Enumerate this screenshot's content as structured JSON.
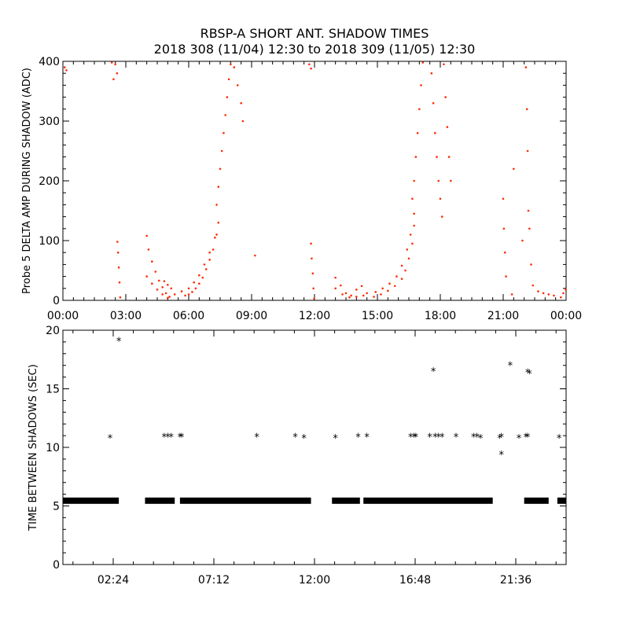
{
  "figure": {
    "title_line1": "RBSP-A SHORT ANT. SHADOW TIMES",
    "title_line2": "2018 308 (11/04) 12:30 to 2018 309 (11/05) 12:30"
  },
  "chart_data": [
    {
      "type": "scatter",
      "ylabel": "Probe 5 DELTA AMP DURING SHADOW (ADC)",
      "xlabel": "",
      "xlim": [
        "00:00",
        "24:00"
      ],
      "ylim": [
        0,
        400
      ],
      "x_tick_labels": [
        "00:00",
        "03:00",
        "06:00",
        "09:00",
        "12:00",
        "15:00",
        "18:00",
        "21:00",
        "00:00"
      ],
      "y_tick_labels": [
        "0",
        "100",
        "200",
        "300",
        "400"
      ],
      "grid": false,
      "marker": "dot",
      "color": "#ff2a00",
      "series": [
        {
          "points": [
            {
              "x": "00:05",
              "y": 390
            },
            {
              "x": "00:10",
              "y": 385
            },
            {
              "x": "02:20",
              "y": 398
            },
            {
              "x": "02:25",
              "y": 370
            },
            {
              "x": "02:30",
              "y": 395
            },
            {
              "x": "02:35",
              "y": 380
            },
            {
              "x": "02:36",
              "y": 98
            },
            {
              "x": "02:38",
              "y": 80
            },
            {
              "x": "02:40",
              "y": 55
            },
            {
              "x": "02:42",
              "y": 30
            },
            {
              "x": "02:44",
              "y": 5
            },
            {
              "x": "04:00",
              "y": 108
            },
            {
              "x": "04:05",
              "y": 85
            },
            {
              "x": "04:15",
              "y": 65
            },
            {
              "x": "04:25",
              "y": 48
            },
            {
              "x": "04:35",
              "y": 33
            },
            {
              "x": "04:45",
              "y": 22
            },
            {
              "x": "04:55",
              "y": 12
            },
            {
              "x": "05:05",
              "y": 6
            },
            {
              "x": "04:00",
              "y": 40
            },
            {
              "x": "04:15",
              "y": 28
            },
            {
              "x": "04:30",
              "y": 18
            },
            {
              "x": "04:45",
              "y": 10
            },
            {
              "x": "05:00",
              "y": 4
            },
            {
              "x": "04:50",
              "y": 32
            },
            {
              "x": "05:00",
              "y": 26
            },
            {
              "x": "05:10",
              "y": 20
            },
            {
              "x": "05:20",
              "y": 10
            },
            {
              "x": "05:40",
              "y": 15
            },
            {
              "x": "05:50",
              "y": 8
            },
            {
              "x": "06:00",
              "y": 10
            },
            {
              "x": "06:10",
              "y": 14
            },
            {
              "x": "06:20",
              "y": 20
            },
            {
              "x": "06:30",
              "y": 28
            },
            {
              "x": "06:40",
              "y": 38
            },
            {
              "x": "06:50",
              "y": 52
            },
            {
              "x": "07:00",
              "y": 68
            },
            {
              "x": "07:10",
              "y": 85
            },
            {
              "x": "07:20",
              "y": 110
            },
            {
              "x": "06:00",
              "y": 20
            },
            {
              "x": "06:15",
              "y": 30
            },
            {
              "x": "06:30",
              "y": 42
            },
            {
              "x": "06:45",
              "y": 60
            },
            {
              "x": "07:00",
              "y": 80
            },
            {
              "x": "07:15",
              "y": 105
            },
            {
              "x": "07:25",
              "y": 130
            },
            {
              "x": "07:20",
              "y": 160
            },
            {
              "x": "07:25",
              "y": 190
            },
            {
              "x": "07:30",
              "y": 220
            },
            {
              "x": "07:35",
              "y": 250
            },
            {
              "x": "07:40",
              "y": 280
            },
            {
              "x": "07:45",
              "y": 310
            },
            {
              "x": "07:50",
              "y": 340
            },
            {
              "x": "07:55",
              "y": 370
            },
            {
              "x": "08:00",
              "y": 395
            },
            {
              "x": "08:10",
              "y": 390
            },
            {
              "x": "08:20",
              "y": 360
            },
            {
              "x": "08:30",
              "y": 330
            },
            {
              "x": "08:35",
              "y": 300
            },
            {
              "x": "09:10",
              "y": 75
            },
            {
              "x": "11:45",
              "y": 395
            },
            {
              "x": "11:50",
              "y": 388
            },
            {
              "x": "11:50",
              "y": 95
            },
            {
              "x": "11:52",
              "y": 70
            },
            {
              "x": "11:55",
              "y": 45
            },
            {
              "x": "11:57",
              "y": 20
            },
            {
              "x": "11:59",
              "y": 3
            },
            {
              "x": "13:00",
              "y": 38
            },
            {
              "x": "13:15",
              "y": 25
            },
            {
              "x": "13:30",
              "y": 12
            },
            {
              "x": "13:45",
              "y": 8
            },
            {
              "x": "14:00",
              "y": 18
            },
            {
              "x": "14:15",
              "y": 24
            },
            {
              "x": "14:30",
              "y": 12
            },
            {
              "x": "13:00",
              "y": 20
            },
            {
              "x": "13:20",
              "y": 10
            },
            {
              "x": "13:40",
              "y": 5
            },
            {
              "x": "14:00",
              "y": 6
            },
            {
              "x": "14:20",
              "y": 8
            },
            {
              "x": "14:50",
              "y": 6
            },
            {
              "x": "15:10",
              "y": 10
            },
            {
              "x": "15:30",
              "y": 16
            },
            {
              "x": "15:50",
              "y": 24
            },
            {
              "x": "16:10",
              "y": 36
            },
            {
              "x": "16:20",
              "y": 50
            },
            {
              "x": "16:30",
              "y": 70
            },
            {
              "x": "16:40",
              "y": 95
            },
            {
              "x": "16:45",
              "y": 125
            },
            {
              "x": "14:55",
              "y": 14
            },
            {
              "x": "15:15",
              "y": 20
            },
            {
              "x": "15:35",
              "y": 28
            },
            {
              "x": "15:55",
              "y": 40
            },
            {
              "x": "16:10",
              "y": 58
            },
            {
              "x": "16:25",
              "y": 85
            },
            {
              "x": "16:35",
              "y": 110
            },
            {
              "x": "16:45",
              "y": 145
            },
            {
              "x": "16:40",
              "y": 170
            },
            {
              "x": "16:45",
              "y": 200
            },
            {
              "x": "16:50",
              "y": 240
            },
            {
              "x": "16:55",
              "y": 280
            },
            {
              "x": "17:00",
              "y": 320
            },
            {
              "x": "17:05",
              "y": 360
            },
            {
              "x": "17:10",
              "y": 398
            },
            {
              "x": "17:35",
              "y": 380
            },
            {
              "x": "17:40",
              "y": 330
            },
            {
              "x": "17:45",
              "y": 280
            },
            {
              "x": "17:50",
              "y": 240
            },
            {
              "x": "17:55",
              "y": 200
            },
            {
              "x": "18:00",
              "y": 170
            },
            {
              "x": "18:05",
              "y": 140
            },
            {
              "x": "18:10",
              "y": 395
            },
            {
              "x": "18:15",
              "y": 340
            },
            {
              "x": "18:20",
              "y": 290
            },
            {
              "x": "18:25",
              "y": 240
            },
            {
              "x": "18:30",
              "y": 200
            },
            {
              "x": "21:00",
              "y": 170
            },
            {
              "x": "21:02",
              "y": 120
            },
            {
              "x": "21:05",
              "y": 80
            },
            {
              "x": "21:08",
              "y": 40
            },
            {
              "x": "21:25",
              "y": 10
            },
            {
              "x": "21:30",
              "y": 220
            },
            {
              "x": "21:55",
              "y": 100
            },
            {
              "x": "22:05",
              "y": 390
            },
            {
              "x": "22:08",
              "y": 320
            },
            {
              "x": "22:10",
              "y": 250
            },
            {
              "x": "22:12",
              "y": 150
            },
            {
              "x": "22:15",
              "y": 120
            },
            {
              "x": "22:20",
              "y": 60
            },
            {
              "x": "22:25",
              "y": 25
            },
            {
              "x": "22:40",
              "y": 15
            },
            {
              "x": "22:55",
              "y": 12
            },
            {
              "x": "23:10",
              "y": 10
            },
            {
              "x": "23:25",
              "y": 8
            },
            {
              "x": "23:45",
              "y": 5
            },
            {
              "x": "23:52",
              "y": 12
            },
            {
              "x": "23:59",
              "y": 18
            }
          ]
        }
      ]
    },
    {
      "type": "scatter",
      "ylabel": "TIME BETWEEN SHADOWS (SEC)",
      "xlabel": "",
      "xlim": [
        "00:00",
        "24:00"
      ],
      "ylim": [
        0,
        20
      ],
      "x_tick_labels": [
        "02:24",
        "07:12",
        "12:00",
        "16:48",
        "21:36"
      ],
      "y_tick_labels": [
        "0",
        "5",
        "10",
        "15",
        "20"
      ],
      "grid": false,
      "marker": "asterisk",
      "color": "#000000",
      "baseline_value": 5.45,
      "baseline_segments": [
        {
          "from": "00:00",
          "to": "02:40"
        },
        {
          "from": "03:55",
          "to": "05:20"
        },
        {
          "from": "05:35",
          "to": "11:50"
        },
        {
          "from": "12:50",
          "to": "14:10"
        },
        {
          "from": "14:20",
          "to": "20:30"
        },
        {
          "from": "22:00",
          "to": "23:10"
        },
        {
          "from": "23:35",
          "to": "24:00"
        }
      ],
      "series": [
        {
          "points": [
            {
              "x": "02:15",
              "y": 10.8
            },
            {
              "x": "02:40",
              "y": 19.1
            },
            {
              "x": "04:50",
              "y": 10.9
            },
            {
              "x": "05:00",
              "y": 10.9
            },
            {
              "x": "05:10",
              "y": 10.9
            },
            {
              "x": "05:35",
              "y": 10.9
            },
            {
              "x": "05:40",
              "y": 10.9
            },
            {
              "x": "09:15",
              "y": 10.9
            },
            {
              "x": "11:05",
              "y": 10.9
            },
            {
              "x": "11:30",
              "y": 10.8
            },
            {
              "x": "13:00",
              "y": 10.8
            },
            {
              "x": "14:05",
              "y": 10.9
            },
            {
              "x": "14:30",
              "y": 10.9
            },
            {
              "x": "16:35",
              "y": 10.9
            },
            {
              "x": "16:45",
              "y": 10.9
            },
            {
              "x": "16:50",
              "y": 10.9
            },
            {
              "x": "17:30",
              "y": 10.9
            },
            {
              "x": "17:40",
              "y": 16.5
            },
            {
              "x": "17:45",
              "y": 10.9
            },
            {
              "x": "17:55",
              "y": 10.9
            },
            {
              "x": "18:05",
              "y": 10.9
            },
            {
              "x": "18:45",
              "y": 10.9
            },
            {
              "x": "19:35",
              "y": 10.9
            },
            {
              "x": "19:45",
              "y": 10.9
            },
            {
              "x": "19:55",
              "y": 10.8
            },
            {
              "x": "20:50",
              "y": 10.8
            },
            {
              "x": "20:55",
              "y": 10.9
            },
            {
              "x": "20:55",
              "y": 9.4
            },
            {
              "x": "21:20",
              "y": 17.0
            },
            {
              "x": "21:45",
              "y": 10.8
            },
            {
              "x": "22:05",
              "y": 10.9
            },
            {
              "x": "22:10",
              "y": 10.9
            },
            {
              "x": "22:10",
              "y": 16.4
            },
            {
              "x": "22:15",
              "y": 16.3
            },
            {
              "x": "23:40",
              "y": 10.8
            }
          ]
        }
      ]
    }
  ]
}
